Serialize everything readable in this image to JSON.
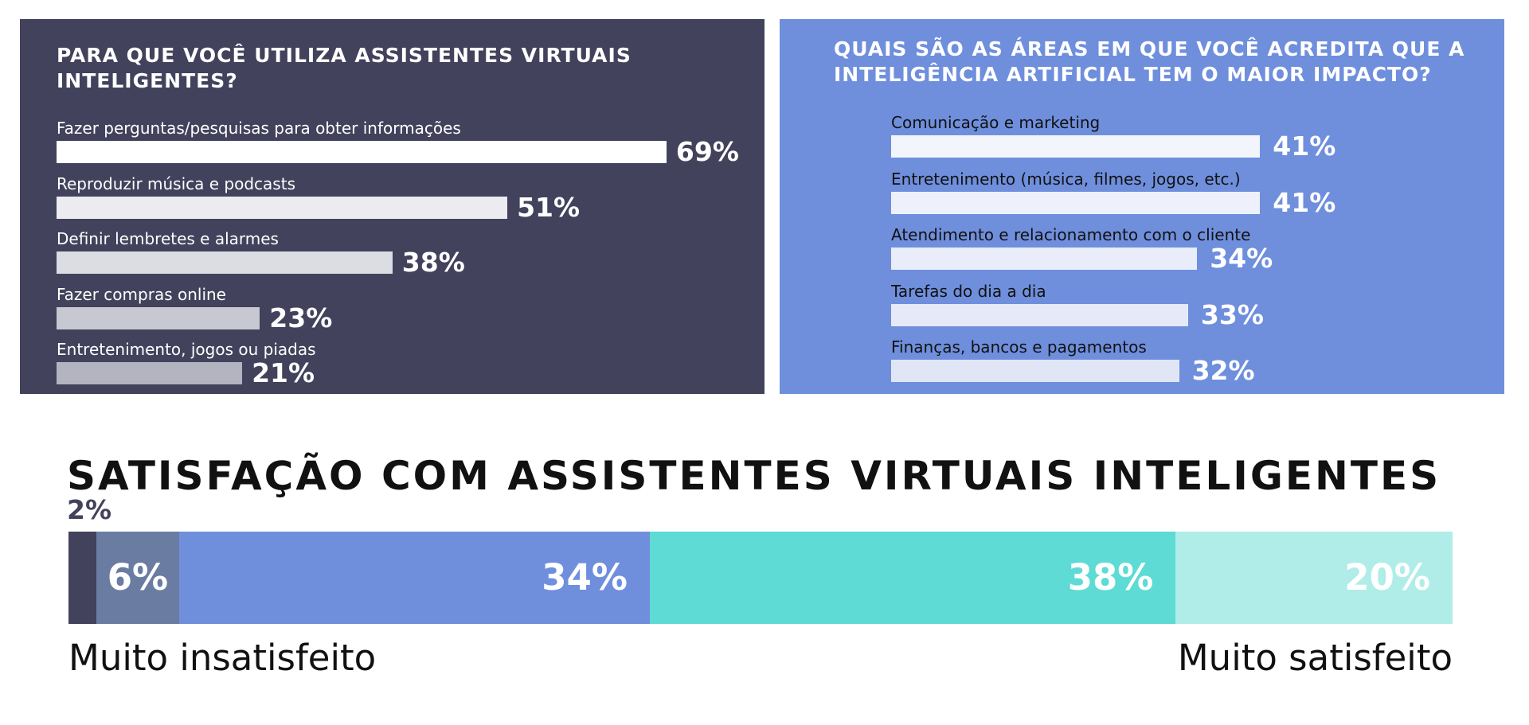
{
  "chart_data": [
    {
      "type": "bar",
      "orientation": "horizontal",
      "title": "PARA QUE VOCÊ UTILIZA ASSISTENTES VIRTUAIS INTELIGENTES?",
      "categories": [
        "Fazer perguntas/pesquisas para obter informações",
        "Reproduzir música e podcasts",
        "Definir lembretes e alarmes",
        "Fazer compras online",
        "Entretenimento, jogos ou piadas"
      ],
      "values": [
        69,
        51,
        38,
        23,
        21
      ],
      "value_labels": [
        "69%",
        "51%",
        "38%",
        "23%",
        "21%"
      ],
      "unit": "%",
      "colors": {
        "background": "#43425c",
        "bars": [
          "#ffffff",
          "#ebebf0",
          "#dcdce3",
          "#c8c8d2",
          "#b4b4c1"
        ]
      }
    },
    {
      "type": "bar",
      "orientation": "horizontal",
      "title": "QUAIS SÃO AS ÁREAS EM QUE VOCÊ ACREDITA QUE A INTELIGÊNCIA ARTIFICIAL TEM O MAIOR IMPACTO?",
      "categories": [
        "Comunicação e marketing",
        "Entretenimento (música, filmes, jogos, etc.)",
        "Atendimento e relacionamento com o cliente",
        "Tarefas do dia a dia",
        "Finanças, bancos e pagamentos"
      ],
      "values": [
        41,
        41,
        34,
        33,
        32
      ],
      "value_labels": [
        "41%",
        "41%",
        "34%",
        "33%",
        "32%"
      ],
      "unit": "%",
      "colors": {
        "background": "#6f8fdd",
        "bars": [
          "#f3f5fc",
          "#eef1fb",
          "#e9ecf9",
          "#e5e9f8",
          "#e1e6f7"
        ]
      }
    },
    {
      "type": "bar",
      "orientation": "horizontal",
      "stacked": true,
      "title": "SATISFAÇÃO COM ASSISTENTES VIRTUAIS INTELIGENTES",
      "segments": [
        {
          "value": 2,
          "label": "2%",
          "color": "#43425c"
        },
        {
          "value": 6,
          "label": "6%",
          "color": "#6a7ca2"
        },
        {
          "value": 34,
          "label": "34%",
          "color": "#6f8fdd"
        },
        {
          "value": 38,
          "label": "38%",
          "color": "#5ddbd4"
        },
        {
          "value": 20,
          "label": "20%",
          "color": "#b0ede9"
        }
      ],
      "scale_left_label": "Muito insatisfeito",
      "scale_right_label": "Muito satisfeito"
    }
  ]
}
